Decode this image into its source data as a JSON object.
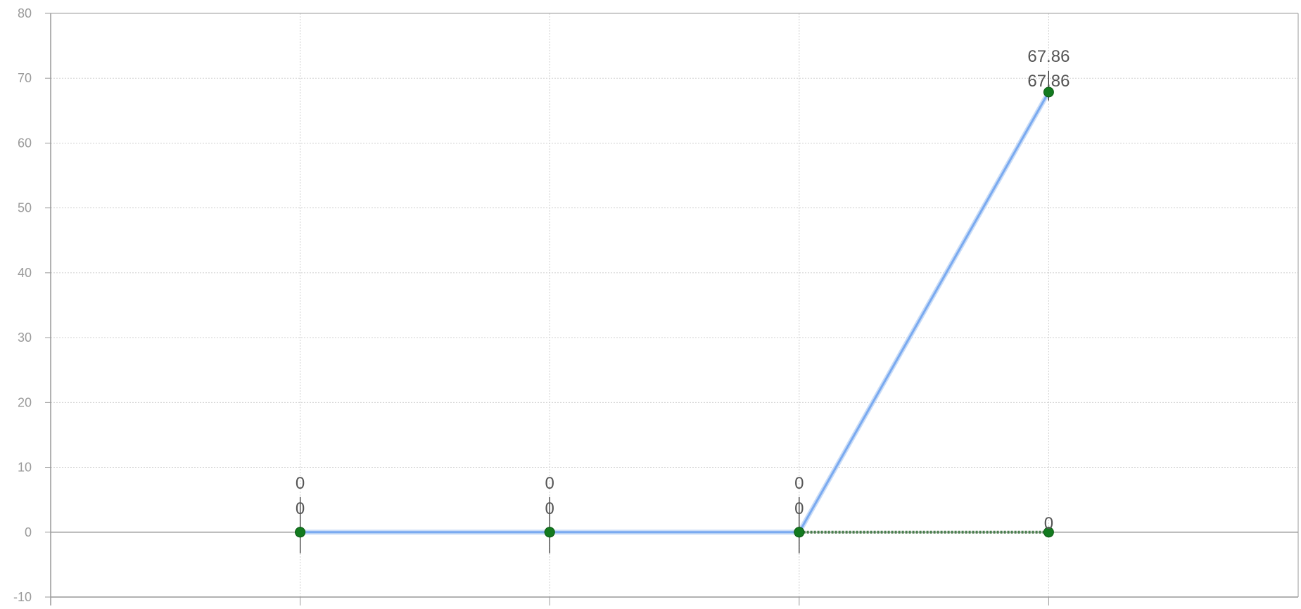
{
  "chart_data": {
    "type": "line",
    "title": "",
    "xlabel": "",
    "ylabel": "",
    "categories": [
      "",
      "",
      "",
      ""
    ],
    "ylim": [
      -10,
      80
    ],
    "yticks": [
      -10,
      0,
      10,
      20,
      30,
      40,
      50,
      60,
      70,
      80
    ],
    "grid": true,
    "legend": "none",
    "series": [
      {
        "values": [
          0,
          0,
          0,
          67.86
        ],
        "color": "#7aaaf0",
        "labels": [
          "0",
          "0",
          "0",
          "67.86"
        ]
      },
      {
        "values": [
          0,
          0,
          0,
          0
        ],
        "color": "#4a7f4e",
        "labels": [
          "0",
          "0",
          "0",
          "0"
        ]
      }
    ],
    "colors": {
      "grid": "#d0d0d0",
      "axis": "#999999",
      "point": "#137a1f",
      "tick_text": "#9a9a9a",
      "label_text": "#555555"
    }
  }
}
